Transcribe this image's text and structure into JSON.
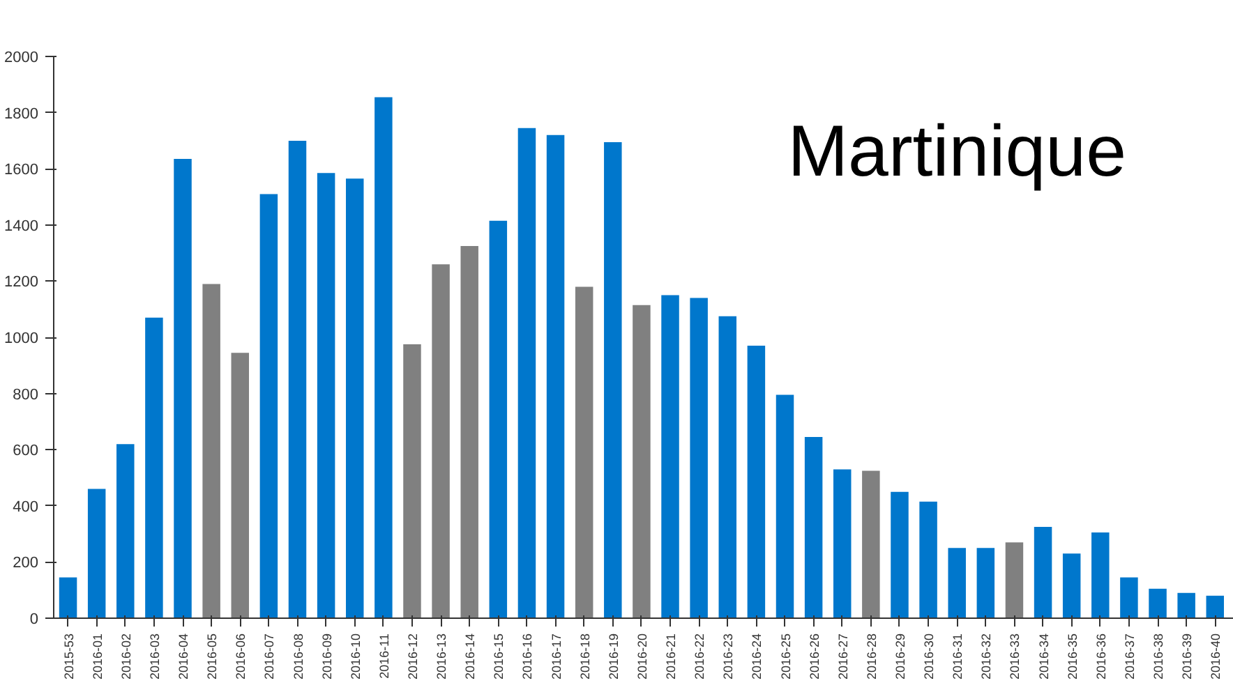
{
  "chart_data": {
    "type": "bar",
    "title": "Martinique",
    "categories": [
      "2015-53",
      "2016-01",
      "2016-02",
      "2016-03",
      "2016-04",
      "2016-05",
      "2016-06",
      "2016-07",
      "2016-08",
      "2016-09",
      "2016-10",
      "2016-11",
      "2016-12",
      "2016-13",
      "2016-14",
      "2016-15",
      "2016-16",
      "2016-17",
      "2016-18",
      "2016-19",
      "2016-20",
      "2016-21",
      "2016-22",
      "2016-23",
      "2016-24",
      "2016-25",
      "2016-26",
      "2016-27",
      "2016-28",
      "2016-29",
      "2016-30",
      "2016-31",
      "2016-32",
      "2016-33",
      "2016-34",
      "2016-35",
      "2016-36",
      "2016-37",
      "2016-38",
      "2016-39",
      "2016-40"
    ],
    "values": [
      145,
      460,
      620,
      1070,
      1635,
      1190,
      945,
      1510,
      1700,
      1585,
      1565,
      1855,
      975,
      1260,
      1325,
      1415,
      1745,
      1720,
      1180,
      1695,
      1115,
      1150,
      1140,
      1075,
      970,
      795,
      645,
      530,
      525,
      450,
      415,
      250,
      250,
      270,
      325,
      230,
      305,
      145,
      105,
      90,
      80
    ],
    "colors": [
      "#0077cc",
      "#0077cc",
      "#0077cc",
      "#0077cc",
      "#0077cc",
      "#808080",
      "#808080",
      "#0077cc",
      "#0077cc",
      "#0077cc",
      "#0077cc",
      "#0077cc",
      "#808080",
      "#808080",
      "#808080",
      "#0077cc",
      "#0077cc",
      "#0077cc",
      "#808080",
      "#0077cc",
      "#808080",
      "#0077cc",
      "#0077cc",
      "#0077cc",
      "#0077cc",
      "#0077cc",
      "#0077cc",
      "#0077cc",
      "#808080",
      "#0077cc",
      "#0077cc",
      "#0077cc",
      "#0077cc",
      "#808080",
      "#0077cc",
      "#0077cc",
      "#0077cc",
      "#0077cc",
      "#0077cc",
      "#0077cc",
      "#0077cc"
    ],
    "ylim": [
      0,
      2000
    ],
    "yticks": [
      0,
      200,
      400,
      600,
      800,
      1000,
      1200,
      1400,
      1600,
      1800,
      2000
    ],
    "grid": false
  }
}
